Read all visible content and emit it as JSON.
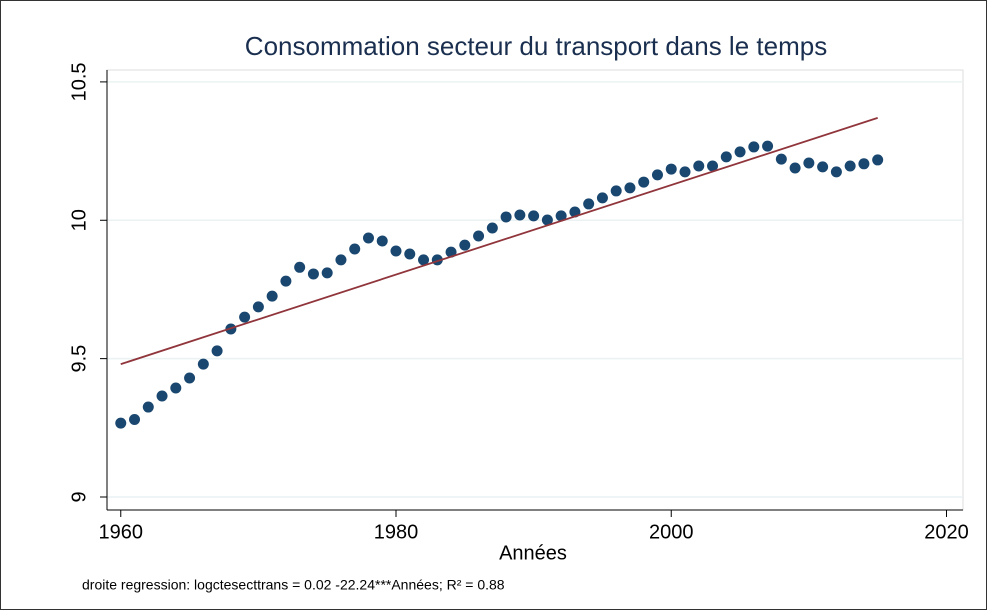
{
  "chart_data": {
    "type": "scatter",
    "title": "Consommation secteur du transport dans le temps",
    "x_label": "Années",
    "note": "droite regression: logctesecttrans = 0.02 -22.24***Années;  R² = 0.88",
    "xlim": [
      1959,
      2021.2
    ],
    "ylim": [
      8.953,
      10.543
    ],
    "xticks": [
      1960,
      1980,
      2000,
      2020
    ],
    "yticks": [
      9,
      9.5,
      10,
      10.5
    ],
    "grid": true,
    "series": [
      {
        "type": "scatter",
        "color": "#1a476f",
        "x": [
          1960,
          1961,
          1962,
          1963,
          1964,
          1965,
          1966,
          1967,
          1968,
          1969,
          1970,
          1971,
          1972,
          1973,
          1974,
          1975,
          1976,
          1977,
          1978,
          1979,
          1980,
          1981,
          1982,
          1983,
          1984,
          1985,
          1986,
          1987,
          1988,
          1989,
          1990,
          1991,
          1992,
          1993,
          1994,
          1995,
          1996,
          1997,
          1998,
          1999,
          2000,
          2001,
          2002,
          2003,
          2004,
          2005,
          2006,
          2007,
          2008,
          2009,
          2010,
          2011,
          2012,
          2013,
          2014,
          2015
        ],
        "values": [
          9.267,
          9.28,
          9.325,
          9.365,
          9.394,
          9.43,
          9.48,
          9.528,
          9.607,
          9.65,
          9.687,
          9.726,
          9.78,
          9.83,
          9.806,
          9.81,
          9.857,
          9.896,
          9.936,
          9.925,
          9.889,
          9.878,
          9.857,
          9.857,
          9.885,
          9.91,
          9.943,
          9.972,
          10.012,
          10.019,
          10.016,
          10.001,
          10.016,
          10.03,
          10.059,
          10.081,
          10.106,
          10.117,
          10.138,
          10.164,
          10.185,
          10.175,
          10.196,
          10.196,
          10.229,
          10.247,
          10.265,
          10.268,
          10.221,
          10.189,
          10.207,
          10.193,
          10.175,
          10.196,
          10.204,
          10.218
        ]
      },
      {
        "type": "line",
        "color": "#90353b",
        "x": [
          1960,
          2015
        ],
        "values": [
          9.48,
          10.37
        ]
      }
    ]
  }
}
